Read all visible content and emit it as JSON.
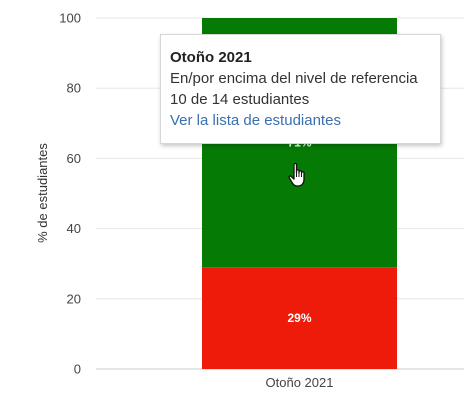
{
  "chart_data": {
    "type": "bar",
    "stacked": true,
    "categories": [
      "Otoño 2021"
    ],
    "series": [
      {
        "values": [
          29
        ],
        "color": "#ee1b0b",
        "label": "29%"
      },
      {
        "values": [
          71
        ],
        "color": "#057a05",
        "label": "71%"
      }
    ],
    "ylabel": "% de estudiantes",
    "xlabel": "",
    "ylim": [
      0,
      100
    ],
    "yticks": [
      0,
      20,
      40,
      60,
      80,
      100
    ],
    "grid": true
  },
  "tooltip": {
    "title": "Otoño 2021",
    "line1": "En/por encima del nivel de referencia",
    "line2": "10 de 14 estudiantes",
    "link": "Ver la lista de estudiantes"
  },
  "cursor_icon": "hand-pointer-icon"
}
